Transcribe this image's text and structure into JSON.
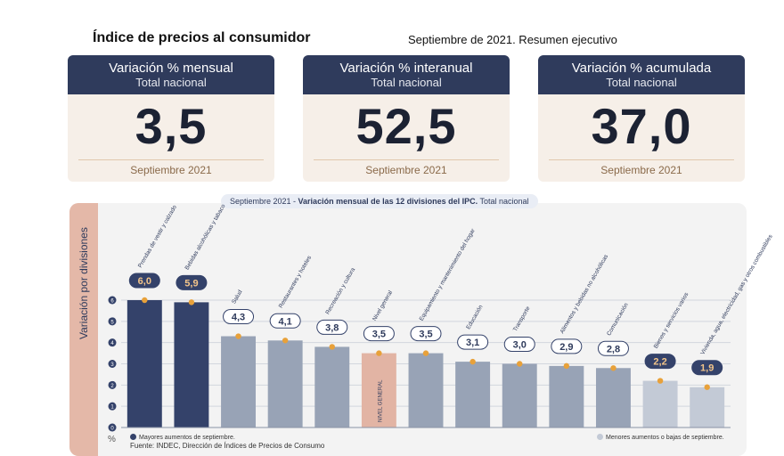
{
  "header": {
    "title": "Índice de precios al consumidor",
    "subtitle": "Septiembre de 2021. Resumen ejecutivo"
  },
  "cards": [
    {
      "label": "Variación % mensual",
      "scope": "Total nacional",
      "value": "3,5",
      "date": "Septiembre 2021"
    },
    {
      "label": "Variación % interanual",
      "scope": "Total nacional",
      "value": "52,5",
      "date": "Septiembre 2021"
    },
    {
      "label": "Variación % acumulada",
      "scope": "Total nacional",
      "value": "37,0",
      "date": "Septiembre 2021"
    }
  ],
  "chart_banner": {
    "prefix": "Septiembre 2021 - ",
    "bold": "Variación mensual de las 12 divisiones del IPC.",
    "suffix": " Total nacional"
  },
  "chart_data": {
    "type": "bar",
    "title": "Septiembre 2021 - Variación mensual de las 12 divisiones del IPC. Total nacional",
    "ylabel": "Variación por divisiones",
    "yunit": "%",
    "ylim": [
      0,
      6
    ],
    "yticks": [
      "0",
      "1",
      "2",
      "3",
      "4",
      "5",
      "6"
    ],
    "categories": [
      "Prendas de vestir y calzado",
      "Bebidas alcohólicas y tabaco",
      "Salud",
      "Restaurantes y hoteles",
      "Recreación y cultura",
      "Nivel general",
      "Equipamiento y mantenimiento del hogar",
      "Educación",
      "Transporte",
      "Alimentos y bebidas no alcohólicas",
      "Comunicación",
      "Bienes y servicios varios",
      "Vivienda, agua, electricidad, gas y otros combustibles"
    ],
    "values": [
      6.0,
      5.9,
      4.3,
      4.1,
      3.8,
      3.5,
      3.5,
      3.1,
      3.0,
      2.9,
      2.8,
      2.2,
      1.9
    ],
    "value_labels": [
      "6,0",
      "5,9",
      "4,3",
      "4,1",
      "3,8",
      "3,5",
      "3,5",
      "3,1",
      "3,0",
      "2,9",
      "2,8",
      "2,2",
      "1,9"
    ],
    "groups": [
      "top",
      "top",
      "mid",
      "mid",
      "mid",
      "general",
      "mid",
      "mid",
      "mid",
      "mid",
      "mid",
      "low",
      "low"
    ],
    "general_bar_label": "NIVEL GENERAL",
    "colors": {
      "top": "#34426a",
      "mid": "#98a3b6",
      "general": "#e2b4a4",
      "low": "#c3cad6",
      "marker": "#e8a13a"
    },
    "legend": {
      "top": "Mayores aumentos de septiembre.",
      "low": "Menores aumentos o bajas de septiembre."
    },
    "source": "Fuente: INDEC, Dirección de Índices de Precios de Consumo"
  }
}
